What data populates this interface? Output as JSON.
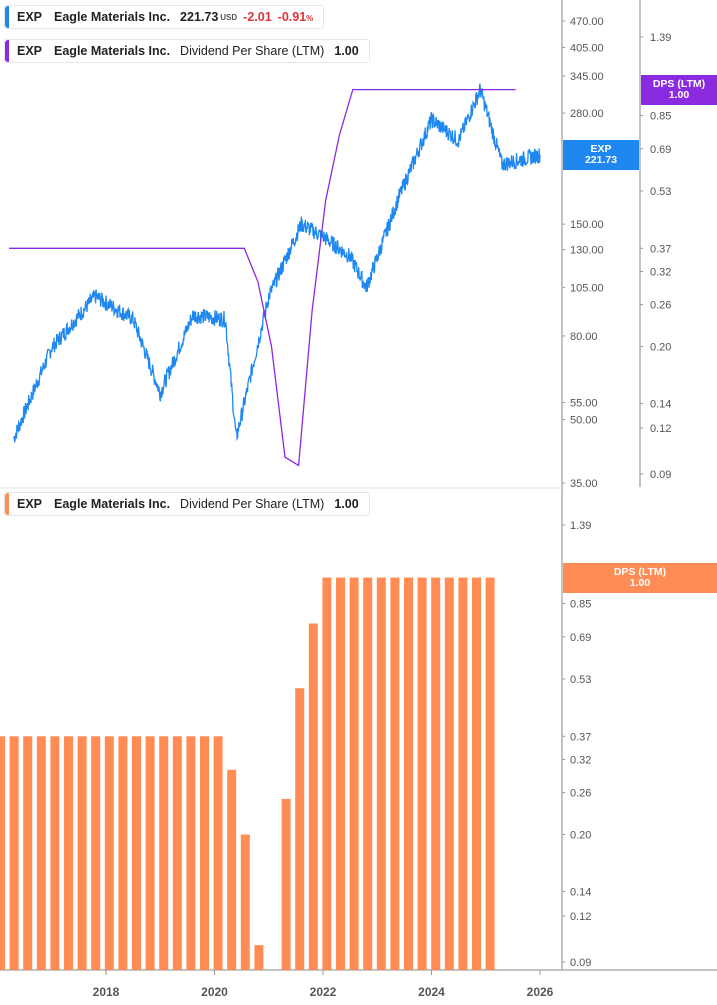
{
  "colors": {
    "price_line": "#1e88f0",
    "dps_line": "#8a2be2",
    "bars": "#ff8c55",
    "negative": "#d93636",
    "axis": "#b0b0b0"
  },
  "top_panel": {
    "legend_price": {
      "ticker": "EXP",
      "name": "Eagle Materials Inc.",
      "price": "221.73",
      "currency": "USD",
      "change": "-2.01",
      "change_pct": "-0.91",
      "pct_sign": "%"
    },
    "legend_dps": {
      "ticker": "EXP",
      "name": "Eagle Materials Inc.",
      "metric": "Dividend Per Share (LTM)",
      "value": "1.00"
    },
    "price_tag": {
      "line1": "EXP",
      "line2": "221.73"
    },
    "dps_tag": {
      "line1": "DPS (LTM)",
      "line2": "1.00"
    },
    "price_axis_ticks": [
      "470.00",
      "405.00",
      "345.00",
      "280.00",
      "150.00",
      "130.00",
      "105.00",
      "80.00",
      "55.00",
      "50.00",
      "35.00"
    ],
    "dps_axis_ticks": [
      "1.39",
      "0.85",
      "0.69",
      "0.53",
      "0.37",
      "0.32",
      "0.26",
      "0.20",
      "0.14",
      "0.12",
      "0.09"
    ]
  },
  "bottom_panel": {
    "legend_dps": {
      "ticker": "EXP",
      "name": "Eagle Materials Inc.",
      "metric": "Dividend Per Share (LTM)",
      "value": "1.00"
    },
    "dps_tag": {
      "line1": "DPS (LTM)",
      "line2": "1.00"
    },
    "dps_axis_ticks": [
      "1.39",
      "0.85",
      "0.69",
      "0.53",
      "0.37",
      "0.32",
      "0.26",
      "0.20",
      "0.14",
      "0.12",
      "0.09"
    ],
    "x_axis_labels": [
      "2018",
      "2020",
      "2022",
      "2024",
      "2026"
    ]
  },
  "chart_data": [
    {
      "type": "line",
      "title": "EXP Eagle Materials Inc. — Price (USD) & Dividend Per Share (LTM)",
      "y_scale": "log",
      "ylim": [
        35,
        470
      ],
      "y2lim": [
        0.09,
        1.39
      ],
      "x": [
        "2016.3",
        "2017.0",
        "2017.8",
        "2018.5",
        "2019.0",
        "2019.6",
        "2020.2",
        "2020.4",
        "2021.0",
        "2021.6",
        "2022.0",
        "2022.5",
        "2022.8",
        "2023.4",
        "2024.0",
        "2024.5",
        "2024.9",
        "2025.3",
        "2025.9",
        "2026.0"
      ],
      "series": [
        {
          "name": "EXP Price",
          "values": [
            45,
            75,
            100,
            88,
            58,
            90,
            88,
            45,
            100,
            150,
            140,
            125,
            105,
            175,
            270,
            240,
            320,
            210,
            220,
            221.73
          ]
        },
        {
          "name": "Dividend Per Share (LTM)",
          "values": [
            0.4,
            0.4,
            0.4,
            0.4,
            0.4,
            0.4,
            0.4,
            0.3,
            0.1,
            0.5,
            1.0,
            1.0,
            1.0,
            1.0,
            1.0,
            1.0,
            1.0,
            1.0,
            1.0,
            1.0
          ]
        }
      ]
    },
    {
      "type": "bar",
      "title": "EXP Eagle Materials Inc. — Dividend Per Share (LTM)",
      "y_scale": "log",
      "ylim": [
        0.09,
        1.39
      ],
      "categories": [
        "2016Q3",
        "2016Q4",
        "2017Q1",
        "2017Q2",
        "2017Q3",
        "2017Q4",
        "2018Q1",
        "2018Q2",
        "2018Q3",
        "2018Q4",
        "2019Q1",
        "2019Q2",
        "2019Q3",
        "2019Q4",
        "2020Q1",
        "2020Q2",
        "2020Q3",
        "2020Q4",
        "2021Q1",
        "2021Q2",
        "2021Q3",
        "2021Q4",
        "2022Q1",
        "2022Q2",
        "2022Q3",
        "2022Q4",
        "2023Q1",
        "2023Q2",
        "2023Q3",
        "2023Q4",
        "2024Q1",
        "2024Q2",
        "2024Q3",
        "2024Q4",
        "2025Q1",
        "2025Q2",
        "2025Q3"
      ],
      "values": [
        0.4,
        0.4,
        0.4,
        0.4,
        0.4,
        0.4,
        0.4,
        0.4,
        0.4,
        0.4,
        0.4,
        0.4,
        0.4,
        0.4,
        0.4,
        0.4,
        0.4,
        0.3,
        0.2,
        0.1,
        null,
        0.25,
        0.5,
        0.75,
        1.0,
        1.0,
        1.0,
        1.0,
        1.0,
        1.0,
        1.0,
        1.0,
        1.0,
        1.0,
        1.0,
        1.0,
        1.0
      ],
      "xlabel": "",
      "ylabel": "DPS (LTM)",
      "x_ticks": [
        "2018",
        "2020",
        "2022",
        "2024",
        "2026"
      ]
    }
  ]
}
